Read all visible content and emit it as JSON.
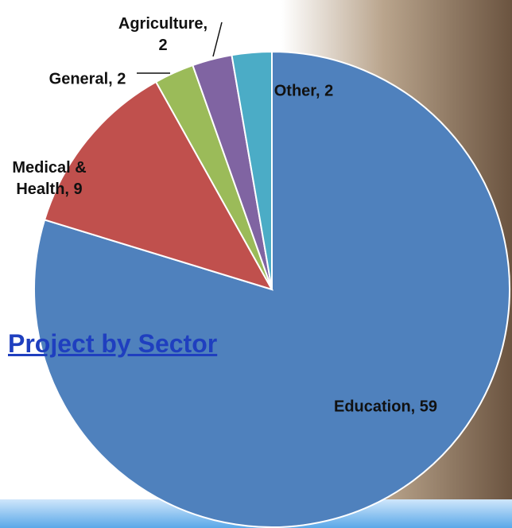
{
  "chart_data": {
    "type": "pie",
    "title": "Project by Sector",
    "categories": [
      "Education",
      "Medical & Health",
      "General",
      "Agriculture",
      "Other"
    ],
    "values": [
      59,
      9,
      2,
      2,
      2
    ],
    "value_labels": [
      "Education, 59",
      "Medical & Health, 9",
      "General, 2",
      "Agriculture, 2",
      "Other, 2"
    ],
    "colors": [
      "#4f81bd",
      "#c0504d",
      "#9bbb59",
      "#8064a2",
      "#4bacc6"
    ]
  }
}
